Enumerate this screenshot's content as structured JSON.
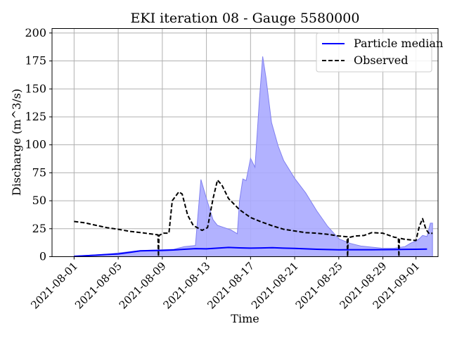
{
  "chart_data": {
    "type": "line",
    "title": "EKI iteration 08 - Gauge 5580000",
    "xlabel": "Time",
    "ylabel": "Discharge (m^3/s)",
    "xlim": [
      "2021-07-30",
      "2021-09-03"
    ],
    "ylim": [
      0,
      204
    ],
    "yticks": [
      0,
      25,
      50,
      75,
      100,
      125,
      150,
      175,
      200
    ],
    "xticks": [
      "2021-08-01",
      "2021-08-05",
      "2021-08-09",
      "2021-08-13",
      "2021-08-17",
      "2021-08-21",
      "2021-08-25",
      "2021-08-29",
      "2021-09-01"
    ],
    "grid": true,
    "legend_position": "top-right",
    "colors": {
      "median": "#0000ff",
      "band": "#aaaaff",
      "band_edge": "#8080f0",
      "observed": "#000000",
      "grid": "#b0b0b0"
    },
    "series": [
      {
        "name": "Particle median",
        "style": "solid",
        "points": [
          [
            "2021-08-01",
            0.3
          ],
          [
            "2021-08-02",
            0.8
          ],
          [
            "2021-08-03",
            1.3
          ],
          [
            "2021-08-04",
            2.0
          ],
          [
            "2021-08-05",
            2.4
          ],
          [
            "2021-08-06",
            3.8
          ],
          [
            "2021-08-07",
            5.2
          ],
          [
            "2021-08-08",
            5.4
          ],
          [
            "2021-08-09",
            5.6
          ],
          [
            "2021-08-10",
            6.0
          ],
          [
            "2021-08-11",
            6.6
          ],
          [
            "2021-08-12",
            7.2
          ],
          [
            "2021-08-13",
            7.0
          ],
          [
            "2021-08-14",
            7.6
          ],
          [
            "2021-08-15",
            8.3
          ],
          [
            "2021-08-16",
            7.9
          ],
          [
            "2021-08-17",
            7.6
          ],
          [
            "2021-08-18",
            7.8
          ],
          [
            "2021-08-19",
            8.0
          ],
          [
            "2021-08-20",
            7.6
          ],
          [
            "2021-08-21",
            7.4
          ],
          [
            "2021-08-22",
            7.0
          ],
          [
            "2021-08-23",
            6.6
          ],
          [
            "2021-08-24",
            6.4
          ],
          [
            "2021-08-25",
            6.1
          ],
          [
            "2021-08-26",
            6.2
          ],
          [
            "2021-08-27",
            6.2
          ],
          [
            "2021-08-28",
            6.2
          ],
          [
            "2021-08-29",
            6.3
          ],
          [
            "2021-08-30",
            6.4
          ],
          [
            "2021-08-31",
            6.5
          ],
          [
            "2021-09-01",
            6.6
          ],
          [
            "2021-09-02",
            6.8
          ]
        ]
      },
      {
        "name": "Observed",
        "style": "dashed",
        "points": [
          [
            "2021-08-01",
            31.5
          ],
          [
            "2021-08-02",
            30.2
          ],
          [
            "2021-08-03",
            28
          ],
          [
            "2021-08-04",
            25.9
          ],
          [
            "2021-08-05",
            24.5
          ],
          [
            "2021-08-06",
            22.7
          ],
          [
            "2021-08-07",
            21.6
          ],
          [
            "2021-08-08",
            20.3
          ],
          [
            "2021-08-08.6",
            19.5
          ],
          [
            "2021-08-08.65",
            0
          ],
          [
            "2021-08-08.7",
            19
          ],
          [
            "2021-08-09.1",
            21
          ],
          [
            "2021-08-09.6",
            21
          ],
          [
            "2021-08-09.9",
            50
          ],
          [
            "2021-08-10.5",
            58
          ],
          [
            "2021-08-10.8",
            56
          ],
          [
            "2021-08-11.3",
            37
          ],
          [
            "2021-08-11.8",
            28
          ],
          [
            "2021-08-12.6",
            23.5
          ],
          [
            "2021-08-13.1",
            26
          ],
          [
            "2021-08-13.6",
            52
          ],
          [
            "2021-08-14",
            68.5
          ],
          [
            "2021-08-14.4",
            64
          ],
          [
            "2021-08-15",
            52
          ],
          [
            "2021-08-16",
            42
          ],
          [
            "2021-08-17",
            35
          ],
          [
            "2021-08-18",
            31
          ],
          [
            "2021-08-19",
            27.5
          ],
          [
            "2021-08-20",
            24.5
          ],
          [
            "2021-08-21",
            23
          ],
          [
            "2021-08-22",
            21.5
          ],
          [
            "2021-08-23",
            21
          ],
          [
            "2021-08-24",
            20
          ],
          [
            "2021-08-25",
            18.5
          ],
          [
            "2021-08-25.75",
            17.8
          ],
          [
            "2021-08-25.8",
            0
          ],
          [
            "2021-08-25.85",
            17
          ],
          [
            "2021-08-26.5",
            18.5
          ],
          [
            "2021-08-27.3",
            19
          ],
          [
            "2021-08-28",
            21.5
          ],
          [
            "2021-08-29",
            21
          ],
          [
            "2021-08-30",
            17.5
          ],
          [
            "2021-08-30.4",
            16.8
          ],
          [
            "2021-08-30.45",
            0
          ],
          [
            "2021-08-30.5",
            16.5
          ],
          [
            "2021-08-31",
            15.5
          ],
          [
            "2021-09-01",
            14.5
          ],
          [
            "2021-09-01.3",
            27
          ],
          [
            "2021-09-01.6",
            34
          ],
          [
            "2021-09-01.9",
            24.5
          ],
          [
            "2021-09-02.2",
            20.5
          ],
          [
            "2021-09-02.5",
            21
          ]
        ]
      }
    ],
    "band": {
      "lower_constant": 0,
      "upper": [
        [
          "2021-08-01",
          0.5
        ],
        [
          "2021-08-04",
          2.2
        ],
        [
          "2021-08-07",
          5.5
        ],
        [
          "2021-08-10",
          6.5
        ],
        [
          "2021-08-11",
          9
        ],
        [
          "2021-08-12",
          10
        ],
        [
          "2021-08-12.5",
          69
        ],
        [
          "2021-08-13",
          52
        ],
        [
          "2021-08-13.6",
          33
        ],
        [
          "2021-08-14",
          28
        ],
        [
          "2021-08-14.6",
          26
        ],
        [
          "2021-08-15.2",
          24
        ],
        [
          "2021-08-15.8",
          20.5
        ],
        [
          "2021-08-16",
          50
        ],
        [
          "2021-08-16.3",
          69.5
        ],
        [
          "2021-08-16.6",
          68
        ],
        [
          "2021-08-17",
          88
        ],
        [
          "2021-08-17.4",
          80
        ],
        [
          "2021-08-17.8",
          140
        ],
        [
          "2021-08-18.1",
          179
        ],
        [
          "2021-08-18.4",
          160
        ],
        [
          "2021-08-18.9",
          120
        ],
        [
          "2021-08-19.5",
          99
        ],
        [
          "2021-08-20",
          86
        ],
        [
          "2021-08-21",
          70
        ],
        [
          "2021-08-22",
          57
        ],
        [
          "2021-08-23",
          41
        ],
        [
          "2021-08-24",
          27
        ],
        [
          "2021-08-25",
          16
        ],
        [
          "2021-08-26",
          12
        ],
        [
          "2021-08-27",
          9.5
        ],
        [
          "2021-08-28",
          8.5
        ],
        [
          "2021-08-29",
          7.5
        ],
        [
          "2021-08-30",
          7.5
        ],
        [
          "2021-08-31",
          9
        ],
        [
          "2021-08-31.5",
          12
        ],
        [
          "2021-09-01",
          14
        ],
        [
          "2021-09-01.3",
          16
        ],
        [
          "2021-09-01.6",
          19
        ],
        [
          "2021-09-02",
          18
        ],
        [
          "2021-09-02.3",
          30
        ],
        [
          "2021-09-02.5",
          30
        ]
      ]
    }
  }
}
